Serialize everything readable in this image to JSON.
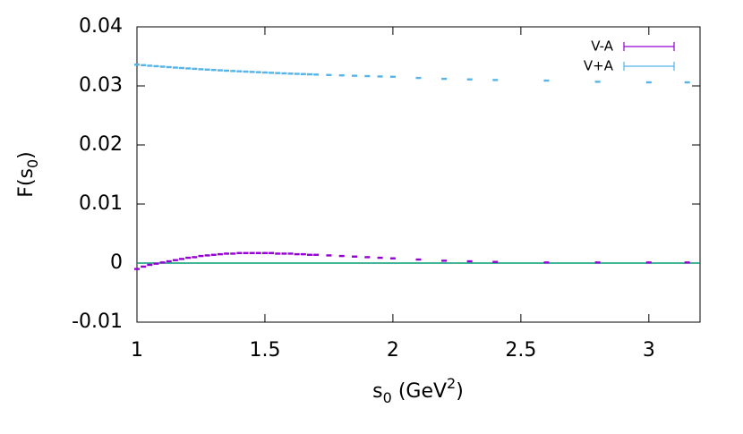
{
  "chart_data": {
    "type": "scatter",
    "xlabel": [
      "s",
      "0",
      " (GeV",
      "2",
      ")"
    ],
    "ylabel": [
      "F(s",
      "0",
      ")"
    ],
    "x": [
      1.0,
      1.025,
      1.05,
      1.075,
      1.1,
      1.125,
      1.15,
      1.175,
      1.2,
      1.225,
      1.25,
      1.275,
      1.3,
      1.325,
      1.35,
      1.375,
      1.4,
      1.425,
      1.45,
      1.475,
      1.5,
      1.525,
      1.55,
      1.575,
      1.6,
      1.625,
      1.65,
      1.675,
      1.7,
      1.75,
      1.8,
      1.85,
      1.9,
      1.95,
      2.0,
      2.1,
      2.2,
      2.3,
      2.4,
      2.6,
      2.8,
      3.0,
      3.15
    ],
    "series": [
      {
        "name": "V-A",
        "color": "#9400d3",
        "values": [
          -0.001,
          -0.0006,
          -0.0003,
          -0.0001,
          0.0001,
          0.0003,
          0.0005,
          0.0007,
          0.0009,
          0.001,
          0.0012,
          0.0013,
          0.0014,
          0.0015,
          0.0016,
          0.0016,
          0.0017,
          0.0017,
          0.0017,
          0.0017,
          0.0017,
          0.0017,
          0.0016,
          0.0016,
          0.0016,
          0.0015,
          0.0015,
          0.0014,
          0.0014,
          0.0013,
          0.0012,
          0.0011,
          0.001,
          0.0009,
          0.0008,
          0.0006,
          0.0004,
          0.0003,
          0.0002,
          0.0001,
          0.0001,
          0.0001,
          0.0001
        ]
      },
      {
        "name": "V+A",
        "color": "#56b4e9",
        "values": [
          0.0336,
          0.03351,
          0.03342,
          0.03334,
          0.03326,
          0.03318,
          0.0331,
          0.03303,
          0.03296,
          0.03289,
          0.03282,
          0.03276,
          0.0327,
          0.03264,
          0.03258,
          0.03252,
          0.03247,
          0.03242,
          0.03237,
          0.03232,
          0.03227,
          0.03222,
          0.03217,
          0.03212,
          0.03208,
          0.03204,
          0.032,
          0.03196,
          0.03192,
          0.03185,
          0.03178,
          0.03172,
          0.03166,
          0.0316,
          0.03155,
          0.03135,
          0.0312,
          0.0311,
          0.031,
          0.0309,
          0.0307,
          0.0306,
          0.0306
        ]
      }
    ],
    "xlim": [
      1,
      3.2
    ],
    "xticks": [
      1,
      1.5,
      2,
      2.5,
      3
    ],
    "ylim": [
      -0.01,
      0.04
    ],
    "yticks": [
      -0.01,
      0,
      0.01,
      0.02,
      0.03,
      0.04
    ],
    "zero_line_color": "#009e73",
    "legend": "top-right"
  }
}
